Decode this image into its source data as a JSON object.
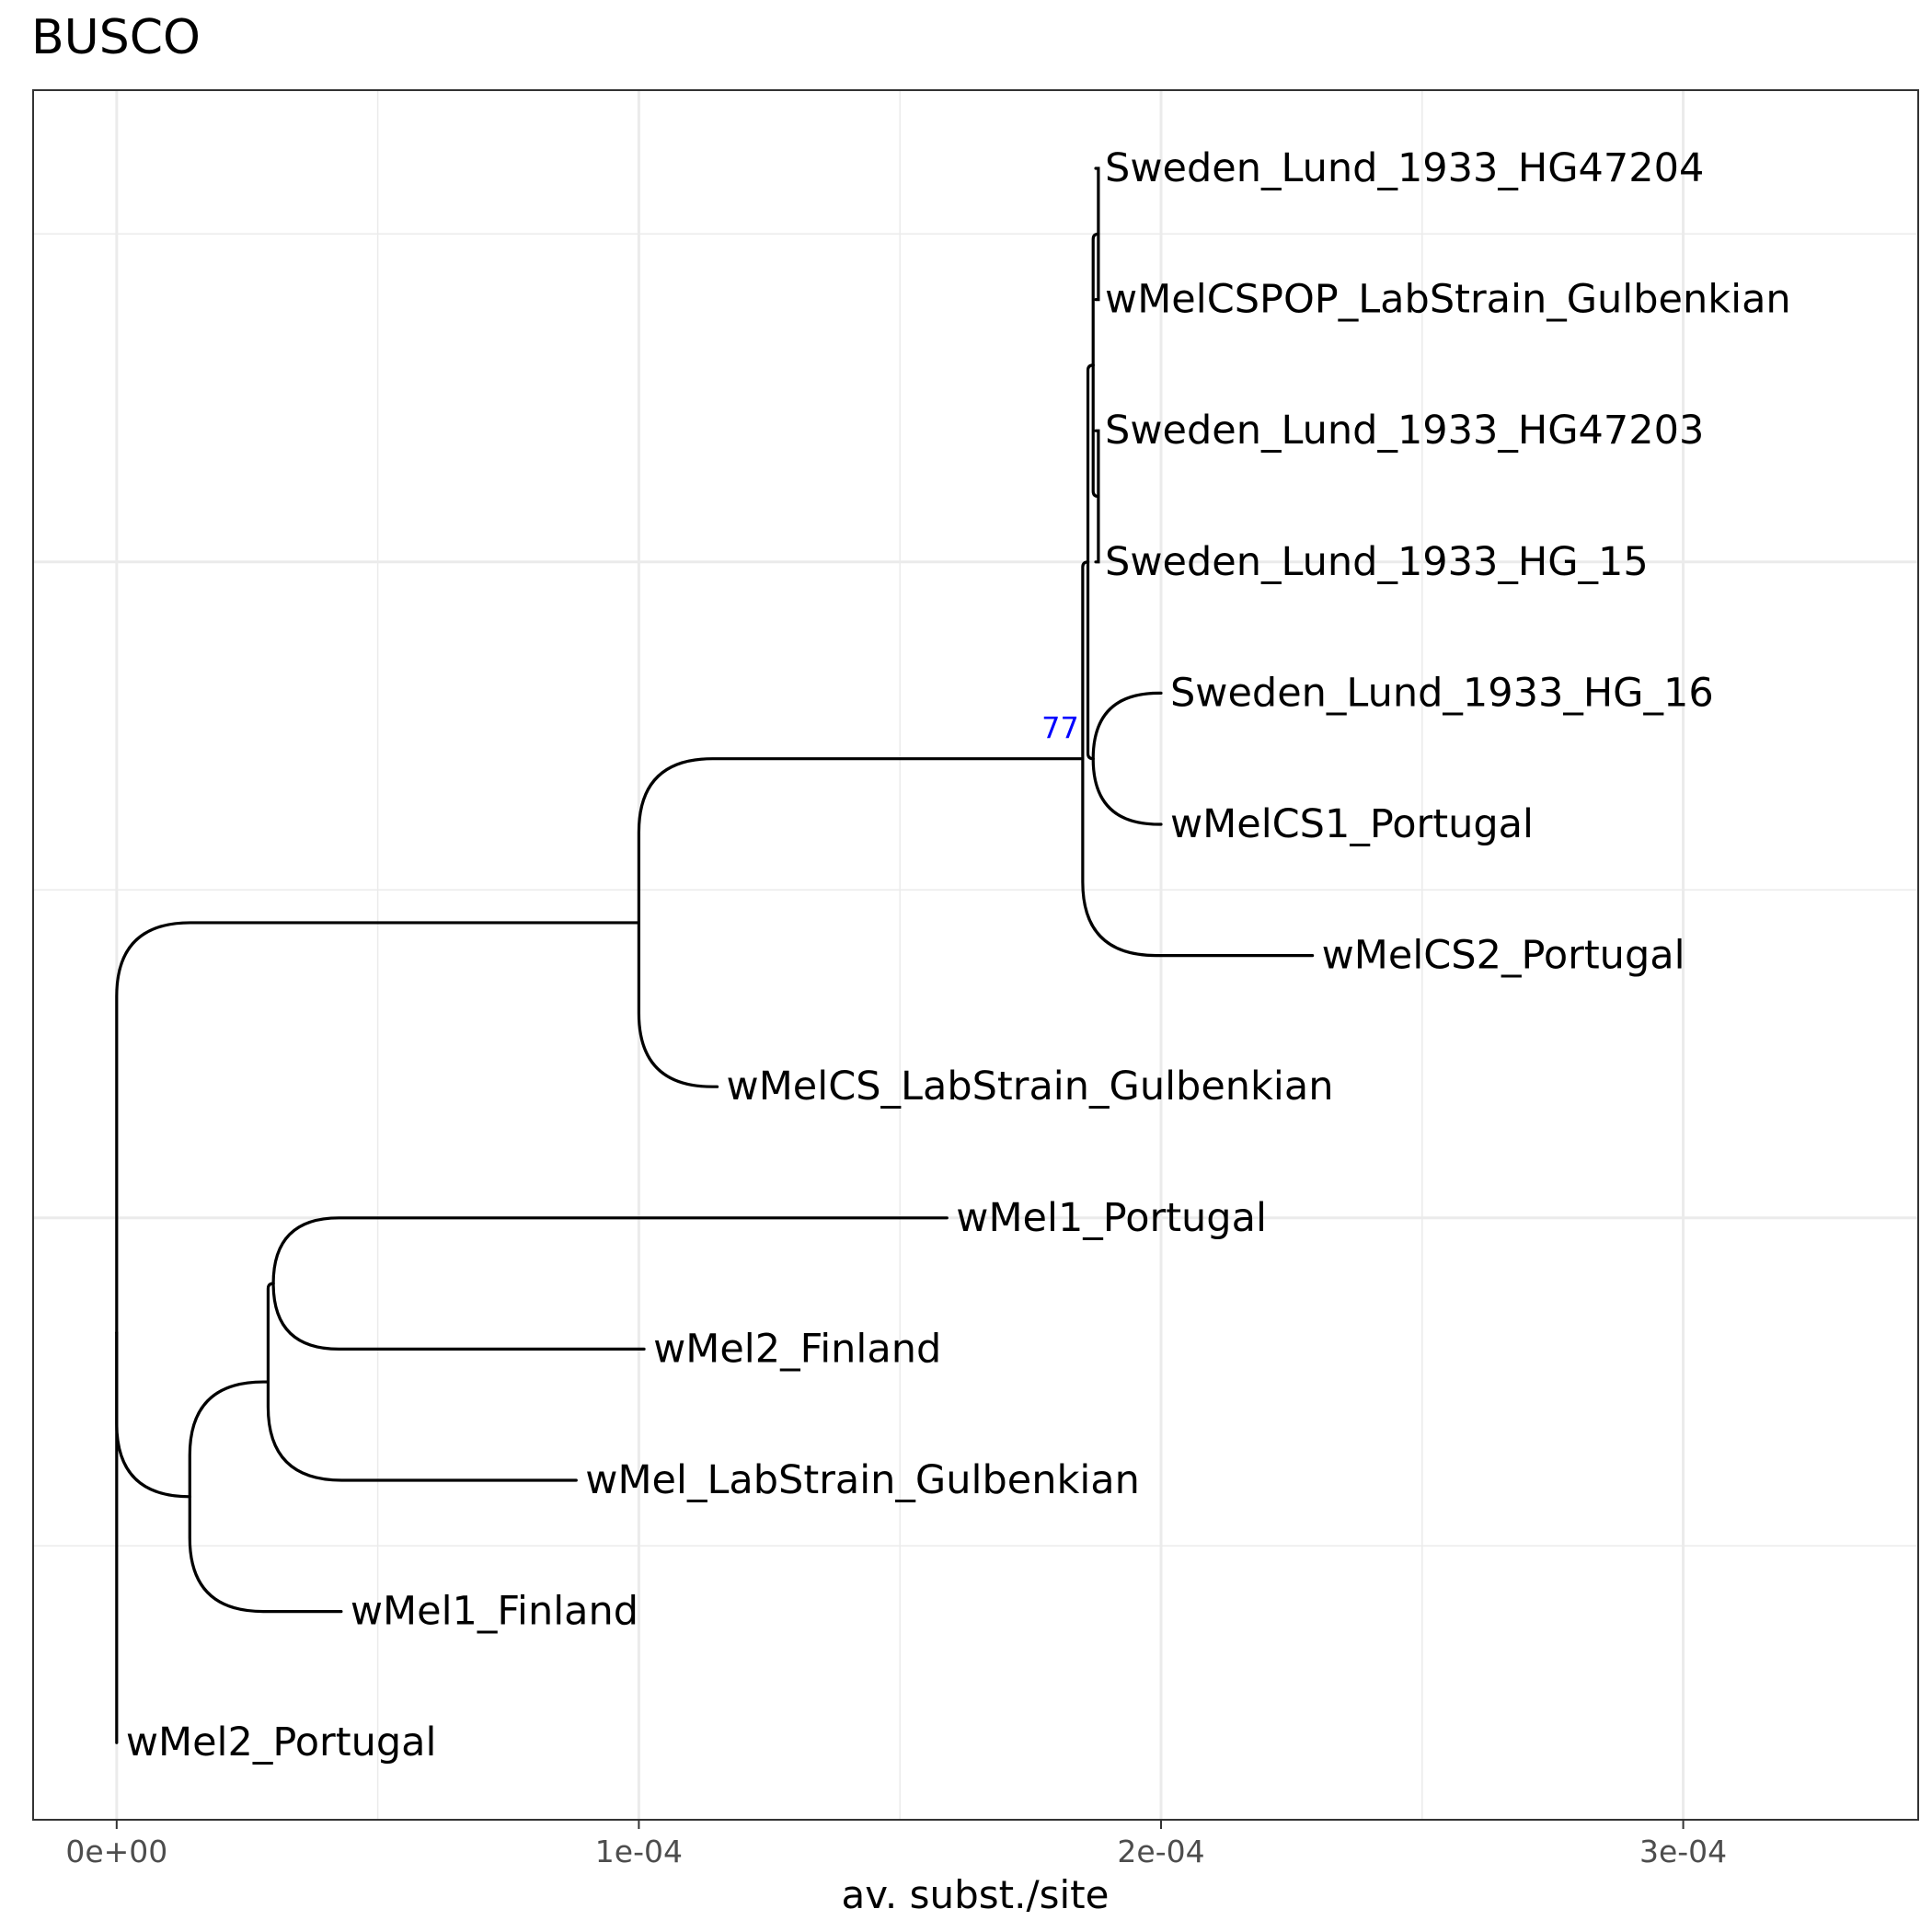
{
  "title": "BUSCO",
  "axis": {
    "xlabel": "av. subst./site",
    "ticks": [
      {
        "value": 0,
        "label": "0e+00"
      },
      {
        "value": 0.0001,
        "label": "1e-04"
      },
      {
        "value": 0.0002,
        "label": "2e-04"
      },
      {
        "value": 0.0003,
        "label": "3e-04"
      }
    ],
    "xlim": [
      -1.6e-05,
      0.000345
    ],
    "grid": true
  },
  "colors": {
    "branch": "#000000",
    "support": "#0000ff",
    "grid": "#ebebeb",
    "panel_border": "#333333",
    "tick_text": "#4d4d4d"
  },
  "tree": {
    "tips": [
      {
        "name": "Sweden_Lund_1933_HG47204",
        "x": 0.0001875,
        "parent": "n5"
      },
      {
        "name": "wMelCSPOP_LabStrain_Gulbenkian",
        "x": 0.0001875,
        "parent": "n5"
      },
      {
        "name": "Sweden_Lund_1933_HG47203",
        "x": 0.0001875,
        "parent": "n6"
      },
      {
        "name": "Sweden_Lund_1933_HG_15",
        "x": 0.0001875,
        "parent": "n6"
      },
      {
        "name": "Sweden_Lund_1933_HG_16",
        "x": 0.0002,
        "parent": "n7"
      },
      {
        "name": "wMelCS1_Portugal",
        "x": 0.0002,
        "parent": "n7"
      },
      {
        "name": "wMelCS2_Portugal",
        "x": 0.000229,
        "parent": "n2"
      },
      {
        "name": "wMelCS_LabStrain_Gulbenkian",
        "x": 0.000115,
        "parent": "n1"
      },
      {
        "name": "wMel1_Portugal",
        "x": 0.000159,
        "parent": "n10"
      },
      {
        "name": "wMel2_Finland",
        "x": 0.000101,
        "parent": "n10"
      },
      {
        "name": "wMel_LabStrain_Gulbenkian",
        "x": 8.8e-05,
        "parent": "n9"
      },
      {
        "name": "wMel1_Finland",
        "x": 4.3e-05,
        "parent": "n8"
      },
      {
        "name": "wMel2_Portugal",
        "x": 0.0,
        "parent": "root"
      }
    ],
    "nodes": [
      {
        "id": "root",
        "x": 0.0,
        "parent": null
      },
      {
        "id": "n1",
        "x": 0.0001,
        "parent": "root"
      },
      {
        "id": "n2",
        "x": 0.000185,
        "parent": "n1",
        "support": "77"
      },
      {
        "id": "n3",
        "x": 0.000186,
        "parent": "n2"
      },
      {
        "id": "n4",
        "x": 0.000187,
        "parent": "n3"
      },
      {
        "id": "n5",
        "x": 0.000188,
        "parent": "n4"
      },
      {
        "id": "n6",
        "x": 0.000188,
        "parent": "n4"
      },
      {
        "id": "n7",
        "x": 0.000187,
        "parent": "n3"
      },
      {
        "id": "n8",
        "x": 1.4e-05,
        "parent": "root"
      },
      {
        "id": "n9",
        "x": 2.9e-05,
        "parent": "n8"
      },
      {
        "id": "n10",
        "x": 3e-05,
        "parent": "n9"
      }
    ]
  }
}
